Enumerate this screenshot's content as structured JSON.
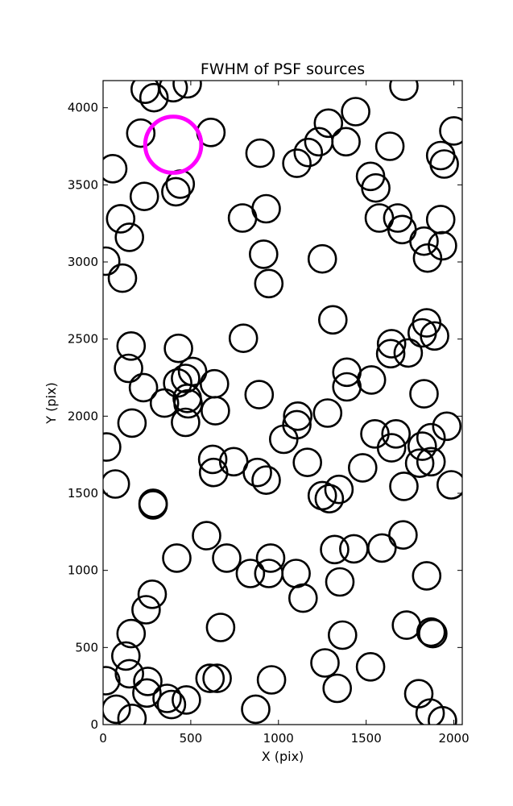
{
  "chart_data": {
    "type": "scatter",
    "title": "FWHM of PSF sources",
    "xlabel": "X (pix)",
    "ylabel": "Y (pix)",
    "xlim": [
      0,
      2048
    ],
    "ylim": [
      0,
      4176
    ],
    "xticks": [
      0,
      500,
      1000,
      1500,
      2000
    ],
    "yticks": [
      0,
      500,
      1000,
      1500,
      2000,
      2500,
      3000,
      3500,
      4000
    ],
    "grid": false,
    "marker_color": "#000000",
    "highlight_color": "#ff00ff",
    "highlight": {
      "x": 400,
      "y": 3760,
      "radius": 160
    },
    "points": [
      [
        290,
        4065
      ],
      [
        400,
        4130
      ],
      [
        240,
        4120
      ],
      [
        480,
        4155
      ],
      [
        215,
        3835
      ],
      [
        615,
        3840
      ],
      [
        55,
        3605
      ],
      [
        235,
        3425
      ],
      [
        415,
        3455
      ],
      [
        440,
        3505
      ],
      [
        100,
        3280
      ],
      [
        150,
        3160
      ],
      [
        15,
        3005
      ],
      [
        110,
        2895
      ],
      [
        895,
        3705
      ],
      [
        795,
        3285
      ],
      [
        930,
        3345
      ],
      [
        915,
        3050
      ],
      [
        945,
        2860
      ],
      [
        1105,
        3640
      ],
      [
        1170,
        3710
      ],
      [
        1230,
        3780
      ],
      [
        1285,
        3900
      ],
      [
        1385,
        3780
      ],
      [
        1440,
        3975
      ],
      [
        1525,
        3555
      ],
      [
        1555,
        3480
      ],
      [
        1575,
        3285
      ],
      [
        1635,
        3750
      ],
      [
        1680,
        3285
      ],
      [
        1705,
        3210
      ],
      [
        1715,
        4140
      ],
      [
        1830,
        3135
      ],
      [
        1850,
        3025
      ],
      [
        1925,
        3690
      ],
      [
        1945,
        3635
      ],
      [
        1925,
        3275
      ],
      [
        1935,
        3105
      ],
      [
        2000,
        3850
      ],
      [
        1250,
        3020
      ],
      [
        1310,
        2625
      ],
      [
        800,
        2505
      ],
      [
        160,
        2455
      ],
      [
        145,
        2310
      ],
      [
        165,
        1955
      ],
      [
        230,
        2185
      ],
      [
        430,
        2440
      ],
      [
        425,
        2215
      ],
      [
        470,
        2245
      ],
      [
        510,
        2290
      ],
      [
        480,
        2115
      ],
      [
        485,
        2080
      ],
      [
        350,
        2085
      ],
      [
        470,
        1960
      ],
      [
        635,
        2210
      ],
      [
        640,
        2035
      ],
      [
        890,
        2140
      ],
      [
        1110,
        2000
      ],
      [
        1105,
        1945
      ],
      [
        1030,
        1850
      ],
      [
        1165,
        1700
      ],
      [
        1280,
        2020
      ],
      [
        1390,
        2285
      ],
      [
        1390,
        2190
      ],
      [
        1530,
        2235
      ],
      [
        1645,
        2470
      ],
      [
        1640,
        2405
      ],
      [
        1740,
        2410
      ],
      [
        1820,
        2540
      ],
      [
        1845,
        2605
      ],
      [
        1890,
        2520
      ],
      [
        1830,
        2145
      ],
      [
        1960,
        1935
      ],
      [
        1550,
        1885
      ],
      [
        1670,
        1885
      ],
      [
        1645,
        1795
      ],
      [
        1715,
        1545
      ],
      [
        1820,
        1805
      ],
      [
        1805,
        1695
      ],
      [
        1870,
        1860
      ],
      [
        1870,
        1705
      ],
      [
        1985,
        1555
      ],
      [
        1480,
        1665
      ],
      [
        1345,
        1525
      ],
      [
        1250,
        1485
      ],
      [
        1290,
        1465
      ],
      [
        880,
        1635
      ],
      [
        930,
        1585
      ],
      [
        745,
        1705
      ],
      [
        625,
        1720
      ],
      [
        630,
        1635
      ],
      [
        20,
        1800
      ],
      [
        70,
        1560
      ],
      [
        285,
        1435
      ],
      [
        285,
        1425
      ],
      [
        590,
        1225
      ],
      [
        420,
        1080
      ],
      [
        705,
        1080
      ],
      [
        840,
        980
      ],
      [
        955,
        1080
      ],
      [
        945,
        980
      ],
      [
        1100,
        980
      ],
      [
        1140,
        820
      ],
      [
        1320,
        1135
      ],
      [
        1430,
        1140
      ],
      [
        1350,
        925
      ],
      [
        1590,
        1145
      ],
      [
        1710,
        1230
      ],
      [
        1845,
        965
      ],
      [
        1730,
        645
      ],
      [
        1870,
        600
      ],
      [
        1880,
        590
      ],
      [
        1365,
        580
      ],
      [
        1265,
        400
      ],
      [
        1335,
        235
      ],
      [
        1525,
        375
      ],
      [
        1800,
        200
      ],
      [
        1865,
        75
      ],
      [
        1935,
        25
      ],
      [
        960,
        290
      ],
      [
        870,
        100
      ],
      [
        610,
        300
      ],
      [
        650,
        300
      ],
      [
        670,
        630
      ],
      [
        280,
        845
      ],
      [
        245,
        745
      ],
      [
        160,
        590
      ],
      [
        130,
        445
      ],
      [
        150,
        330
      ],
      [
        255,
        280
      ],
      [
        250,
        205
      ],
      [
        365,
        170
      ],
      [
        390,
        130
      ],
      [
        475,
        160
      ],
      [
        15,
        285
      ],
      [
        75,
        100
      ],
      [
        165,
        40
      ]
    ]
  }
}
